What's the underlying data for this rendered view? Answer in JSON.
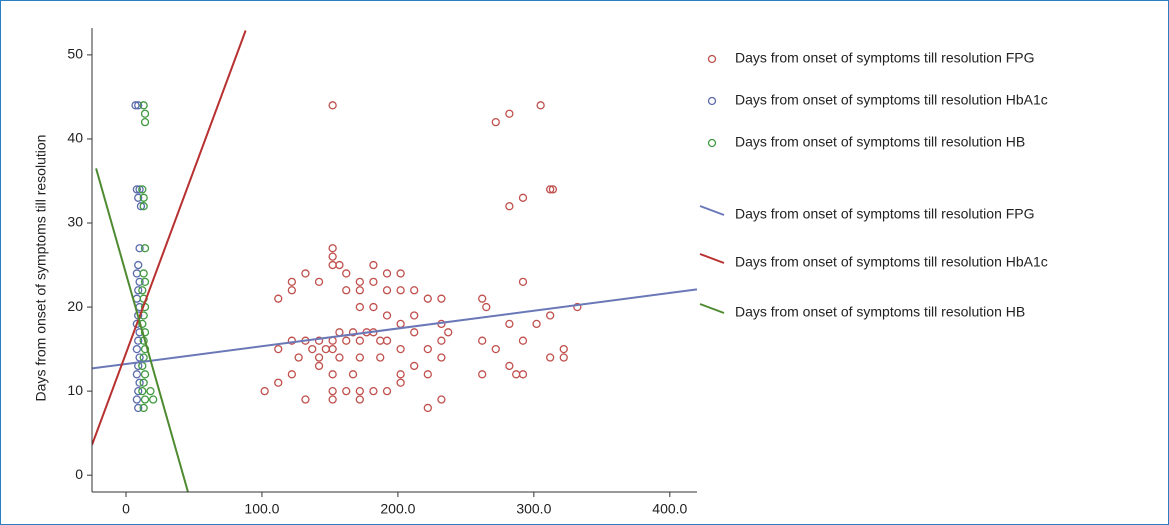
{
  "chart_data": {
    "type": "scatter",
    "ylabel": "Days from onset of symptoms till resolution",
    "xlim": [
      -25,
      420
    ],
    "ylim": [
      -2,
      53.2
    ],
    "xticks": [
      0,
      {
        "value": 100,
        "label": "100.0"
      },
      {
        "value": 200,
        "label": "200.0"
      },
      {
        "value": 300,
        "label": "300.0"
      },
      {
        "value": 400,
        "label": "400.0"
      }
    ],
    "yticks": [
      0,
      10,
      20,
      30,
      40,
      50
    ],
    "series": [
      {
        "name": "Days from onset of symptoms till resolution FPG",
        "type": "scatter",
        "color": "#c0504d",
        "x": [
          152,
          272,
          282,
          305,
          282,
          292,
          312,
          314,
          292,
          262,
          265,
          232,
          222,
          212,
          152,
          152,
          152,
          157,
          162,
          172,
          182,
          192,
          202,
          182,
          142,
          132,
          112,
          122,
          122,
          162,
          172,
          192,
          202,
          212,
          172,
          182,
          192,
          202,
          212,
          232,
          122,
          132,
          142,
          152,
          157,
          162,
          167,
          172,
          177,
          182,
          187,
          192,
          147,
          152,
          137,
          127,
          112,
          142,
          157,
          172,
          187,
          202,
          222,
          232,
          237,
          262,
          272,
          282,
          292,
          302,
          312,
          332,
          322,
          312,
          322,
          282,
          292,
          232,
          222,
          212,
          202,
          202,
          182,
          172,
          152,
          152,
          132,
          122,
          112,
          102,
          162,
          172,
          192,
          222,
          232,
          262,
          287,
          142,
          152,
          167
        ],
        "values": [
          44,
          42,
          43,
          44,
          32,
          33,
          34,
          34,
          23,
          21,
          20,
          21,
          21,
          19,
          27,
          26,
          25,
          25,
          24,
          23,
          25,
          24,
          24,
          23,
          23,
          24,
          21,
          22,
          23,
          22,
          22,
          22,
          22,
          22,
          20,
          20,
          19,
          18,
          17,
          18,
          16,
          16,
          16,
          16,
          17,
          16,
          17,
          16,
          17,
          17,
          16,
          16,
          15,
          15,
          15,
          14,
          15,
          14,
          14,
          14,
          14,
          15,
          15,
          16,
          17,
          16,
          15,
          18,
          16,
          18,
          19,
          20,
          15,
          14,
          14,
          13,
          12,
          14,
          12,
          13,
          11,
          12,
          10,
          10,
          9,
          10,
          9,
          12,
          11,
          10,
          10,
          9,
          10,
          8,
          9,
          12,
          12,
          13,
          12,
          12
        ]
      },
      {
        "name": "Days from onset of symptoms till resolution HbA1c",
        "type": "scatter",
        "color": "#5a6aaa",
        "x": [
          7,
          9,
          8,
          10,
          9,
          10,
          9,
          8,
          10,
          9,
          8,
          10,
          9,
          8,
          10,
          9,
          8,
          10,
          9,
          8,
          10,
          9,
          8,
          9,
          11
        ],
        "values": [
          44,
          44,
          34,
          34,
          33,
          27,
          25,
          24,
          23,
          22,
          21,
          20,
          19,
          18,
          17,
          16,
          15,
          14,
          13,
          12,
          11,
          10,
          9,
          8,
          32
        ]
      },
      {
        "name": "Days from onset of symptoms till resolution HB",
        "type": "scatter",
        "color": "#3f9a3f",
        "x": [
          13,
          14,
          14,
          12,
          13,
          13,
          14,
          13,
          14,
          12,
          13,
          14,
          13,
          12,
          14,
          13,
          14,
          13,
          12,
          14,
          13,
          12,
          14,
          13,
          18,
          20
        ],
        "values": [
          44,
          43,
          42,
          34,
          33,
          32,
          27,
          24,
          23,
          22,
          21,
          20,
          19,
          18,
          17,
          16,
          15,
          14,
          13,
          12,
          11,
          10,
          9,
          8,
          10,
          9
        ]
      },
      {
        "name": "Days from onset of symptoms till resolution FPG",
        "type": "line",
        "color": "#6a78b8",
        "x": [
          -25,
          420
        ],
        "values": [
          12.7,
          22.1
        ]
      },
      {
        "name": "Days from onset of symptoms till resolution HbA1c",
        "type": "line",
        "color": "#b83030",
        "x": [
          -25,
          88
        ],
        "values": [
          3.6,
          52.9
        ]
      },
      {
        "name": "Days from onset of symptoms till resolution HB",
        "type": "line",
        "color": "#4e8a30",
        "x": [
          -22,
          45.6
        ],
        "values": [
          36.5,
          -2
        ]
      }
    ]
  }
}
